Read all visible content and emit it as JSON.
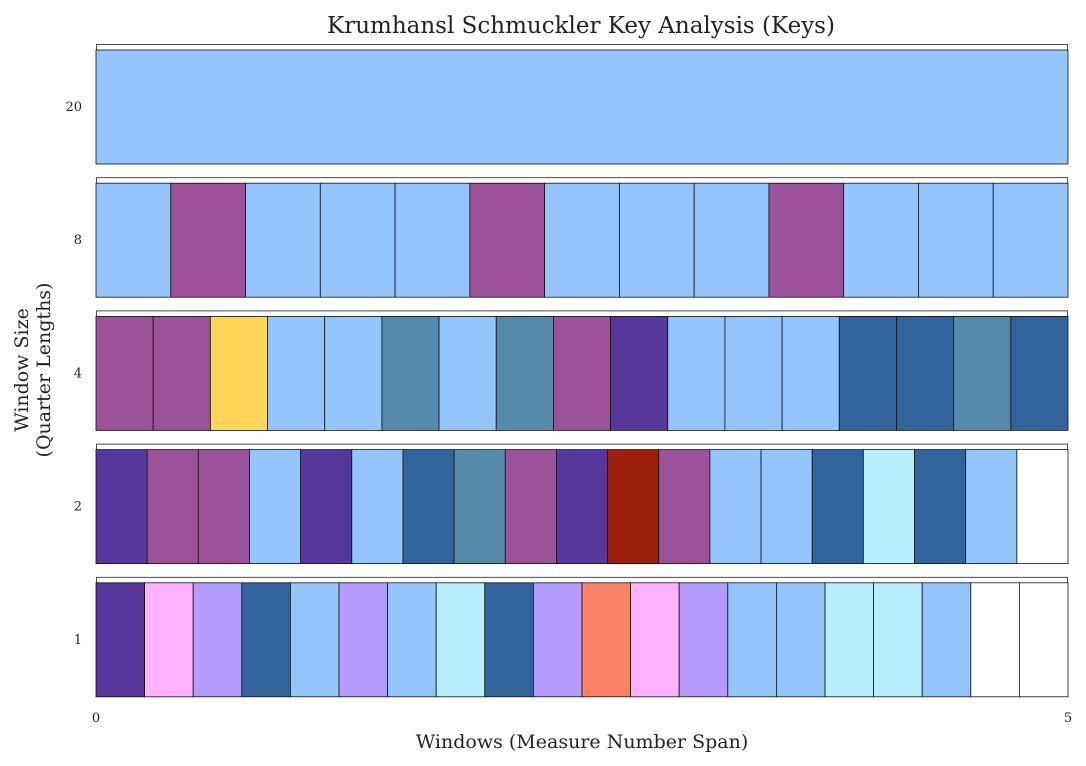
{
  "chart_data": {
    "type": "heatmap",
    "title": "Krumhansl Schmuckler Key Analysis (Keys)",
    "xlabel": "Windows (Measure Number Span)",
    "ylabel_lines": [
      "Window Size",
      "(Quarter Lengths)"
    ],
    "x_ticks": [
      "0",
      "5"
    ],
    "xlim": [
      0,
      5
    ],
    "palette": {
      "light_blue": "#95c5fe",
      "magenta_purple": "#9b5299",
      "yellow": "#ffd657",
      "steel_blue": "#558aab",
      "indigo": "#58379c",
      "navy_blue": "#31649b",
      "dark_red": "#9c1e0b",
      "cyan": "#b7eefe",
      "pink": "#ffb3fe",
      "lavender": "#b69bfe",
      "salmon": "#fe8068",
      "white": "#ffffff"
    },
    "rows": [
      {
        "label": "20",
        "cells": [
          "light_blue"
        ]
      },
      {
        "label": "8",
        "cells": [
          "light_blue",
          "magenta_purple",
          "light_blue",
          "light_blue",
          "light_blue",
          "magenta_purple",
          "light_blue",
          "light_blue",
          "light_blue",
          "magenta_purple",
          "light_blue",
          "light_blue",
          "light_blue"
        ]
      },
      {
        "label": "4",
        "cells": [
          "magenta_purple",
          "magenta_purple",
          "yellow",
          "light_blue",
          "light_blue",
          "steel_blue",
          "light_blue",
          "steel_blue",
          "magenta_purple",
          "indigo",
          "light_blue",
          "light_blue",
          "light_blue",
          "navy_blue",
          "navy_blue",
          "steel_blue",
          "navy_blue"
        ]
      },
      {
        "label": "2",
        "cells": [
          "indigo",
          "magenta_purple",
          "magenta_purple",
          "light_blue",
          "indigo",
          "light_blue",
          "navy_blue",
          "steel_blue",
          "magenta_purple",
          "indigo",
          "dark_red",
          "magenta_purple",
          "light_blue",
          "light_blue",
          "navy_blue",
          "cyan",
          "navy_blue",
          "light_blue",
          "white"
        ]
      },
      {
        "label": "1",
        "cells": [
          "indigo",
          "pink",
          "lavender",
          "navy_blue",
          "light_blue",
          "lavender",
          "light_blue",
          "cyan",
          "navy_blue",
          "lavender",
          "salmon",
          "pink",
          "lavender",
          "light_blue",
          "light_blue",
          "cyan",
          "cyan",
          "light_blue",
          "white",
          "white"
        ]
      }
    ]
  }
}
